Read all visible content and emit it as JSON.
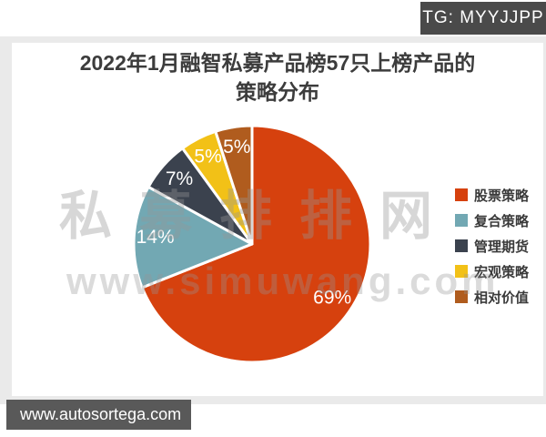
{
  "header": {
    "badge": "TG: MYYJJPP"
  },
  "card": {
    "title_line1": "2022年1月融智私募产品榜57只上榜产品的",
    "title_line2": "策略分布"
  },
  "watermark": {
    "line1": "私募排排网",
    "line2": "www.simuwang.com"
  },
  "footer": {
    "url": "www.autosortega.com"
  },
  "chart_data": {
    "type": "pie",
    "title": "2022年1月融智私募产品榜57只上榜产品的策略分布",
    "categories": [
      "股票策略",
      "复合策略",
      "管理期货",
      "宏观策略",
      "相对价值"
    ],
    "values": [
      69,
      14,
      7,
      5,
      5
    ],
    "value_labels": [
      "69%",
      "14%",
      "7%",
      "5%",
      "5%"
    ],
    "colors": [
      "#d6410e",
      "#72a8b3",
      "#3b424e",
      "#f2c117",
      "#b05c1e"
    ],
    "legend_position": "right",
    "start_angle_deg": 0,
    "direction": "clockwise",
    "slice_border_color": "#ffffff"
  }
}
